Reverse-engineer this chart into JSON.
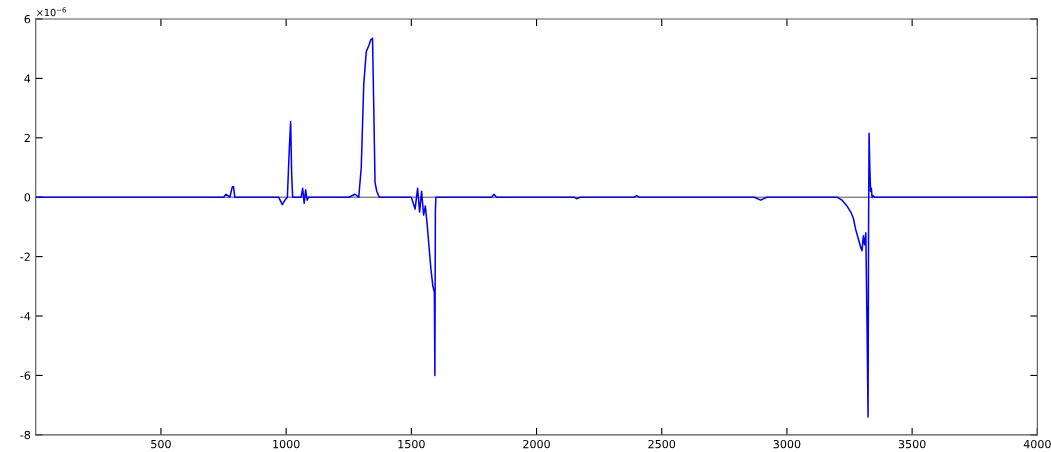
{
  "chart_data": {
    "type": "line",
    "x": [
      0,
      750,
      760,
      775,
      785,
      790,
      795,
      805,
      970,
      985,
      995,
      1005,
      1012,
      1018,
      1022,
      1026,
      1060,
      1066,
      1072,
      1078,
      1084,
      1090,
      1250,
      1275,
      1290,
      1300,
      1310,
      1320,
      1330,
      1338,
      1345,
      1350,
      1355,
      1362,
      1372,
      1380,
      1500,
      1515,
      1525,
      1533,
      1541,
      1549,
      1556,
      1563,
      1570,
      1578,
      1586,
      1592,
      1594,
      1596,
      1598,
      1602,
      1700,
      1820,
      1830,
      1840,
      2150,
      2160,
      2175,
      2390,
      2400,
      2410,
      2870,
      2895,
      2920,
      3200,
      3220,
      3240,
      3255,
      3265,
      3275,
      3285,
      3295,
      3300,
      3305,
      3310,
      3315,
      3320,
      3324,
      3326,
      3328,
      3331,
      3334,
      3337,
      3340,
      3344,
      3350,
      3400,
      4000
    ],
    "series": [
      {
        "color": "#0000ff",
        "values": [
          0,
          0,
          0.1,
          0,
          0.35,
          0.35,
          0,
          0,
          0,
          -0.25,
          -0.1,
          0,
          1.5,
          2.55,
          0.8,
          0,
          0,
          0.3,
          -0.2,
          0.25,
          -0.1,
          0,
          0,
          0.1,
          0,
          1.0,
          3.8,
          4.9,
          5.1,
          5.3,
          5.35,
          3.0,
          0.5,
          0.2,
          0,
          0,
          0,
          -0.4,
          0.3,
          -0.5,
          0.2,
          -0.6,
          -0.3,
          -0.9,
          -1.6,
          -2.4,
          -3.0,
          -3.2,
          -6.0,
          -0.5,
          0,
          0,
          0,
          0,
          0.1,
          0,
          0,
          -0.05,
          0,
          0,
          0.05,
          0,
          0,
          -0.1,
          0,
          0,
          -0.1,
          -0.3,
          -0.5,
          -0.7,
          -1.1,
          -1.4,
          -1.7,
          -1.8,
          -1.3,
          -1.6,
          -1.2,
          -4.4,
          -7.4,
          -1.0,
          2.15,
          1.0,
          0.2,
          0.3,
          0,
          0.05,
          0,
          0,
          0
        ]
      }
    ],
    "xlim": [
      0,
      4000
    ],
    "ylim": [
      -8,
      6
    ],
    "xticks": [
      500,
      1000,
      1500,
      2000,
      2500,
      3000,
      3500,
      4000
    ],
    "yticks": [
      -8,
      -6,
      -4,
      -2,
      0,
      2,
      4,
      6
    ],
    "ref_lines": [
      {
        "axis": "y",
        "value": 0,
        "color": "#000000"
      }
    ],
    "annotations": [
      "×10$^{−6}$"
    ],
    "grid": false,
    "legend": false
  }
}
